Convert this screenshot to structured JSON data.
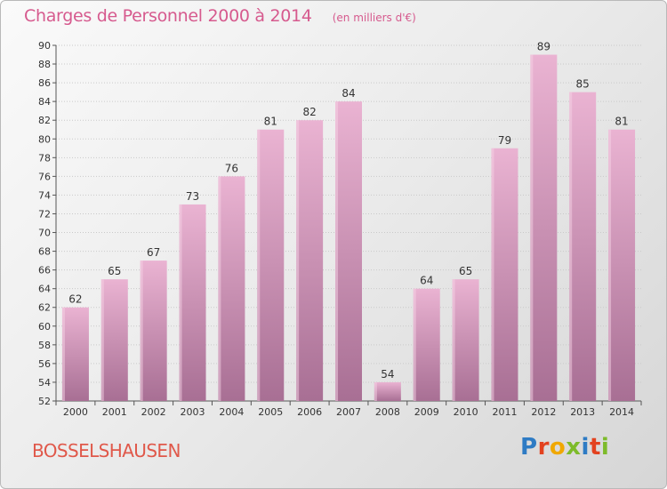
{
  "header": {
    "title": "Charges de Personnel 2000 à 2014",
    "subtitle": "(en milliers d'€)"
  },
  "footer": {
    "commune": "BOSSELSHAUSEN",
    "logo_letters": [
      "P",
      "r",
      "o",
      "x",
      "i",
      "t",
      "i"
    ],
    "logo_colors": [
      "#2e7bc4",
      "#e3421f",
      "#f0a800",
      "#7dbb2a",
      "#2e7bc4",
      "#e3421f",
      "#7dbb2a"
    ]
  },
  "colors": {
    "title": "#d65a8e",
    "commune": "#e0584a",
    "bar_light": "#eab3d2",
    "bar_dark": "#a86f94"
  },
  "chart_data": {
    "type": "bar",
    "categories": [
      "2000",
      "2001",
      "2002",
      "2003",
      "2004",
      "2005",
      "2006",
      "2007",
      "2008",
      "2009",
      "2010",
      "2011",
      "2012",
      "2013",
      "2014"
    ],
    "values": [
      62,
      65,
      67,
      73,
      76,
      81,
      82,
      84,
      54,
      64,
      65,
      79,
      89,
      85,
      81
    ],
    "ylim": [
      52,
      90
    ],
    "yticks": [
      52,
      54,
      56,
      58,
      60,
      62,
      64,
      66,
      68,
      70,
      72,
      74,
      76,
      78,
      80,
      82,
      84,
      86,
      88,
      90
    ],
    "grid": true,
    "xlabel": "",
    "ylabel": ""
  }
}
